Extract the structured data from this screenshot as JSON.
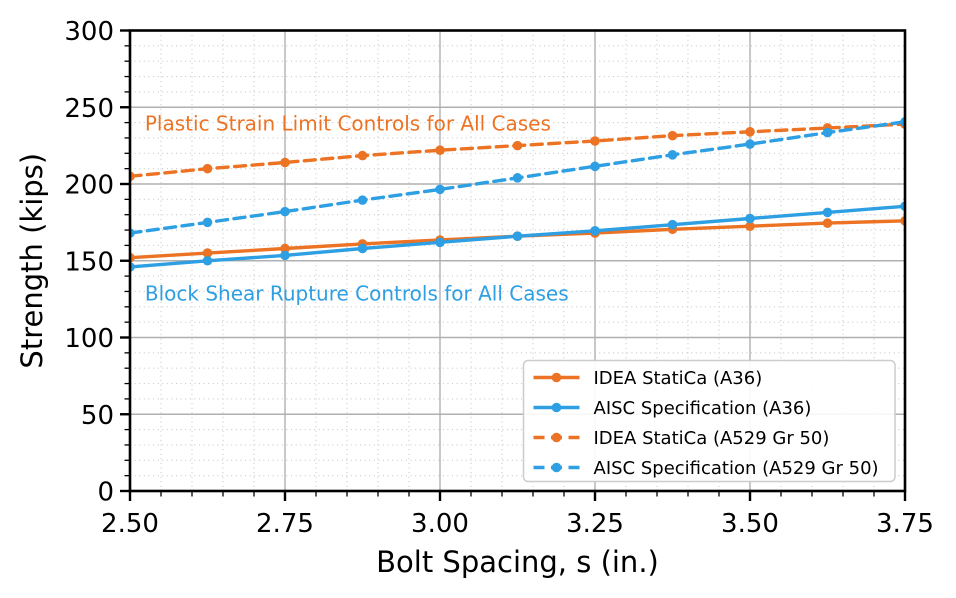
{
  "chart_data": {
    "type": "line",
    "title": "",
    "xlabel": "Bolt Spacing, s (in.)",
    "ylabel": "Strength (kips)",
    "xlim": [
      2.5,
      3.75
    ],
    "ylim": [
      0,
      300
    ],
    "x_major_ticks": [
      2.5,
      2.75,
      3.0,
      3.25,
      3.5,
      3.75
    ],
    "x_tick_labels": [
      "2.50",
      "2.75",
      "3.00",
      "3.25",
      "3.50",
      "3.75"
    ],
    "x_minor_step": 0.05,
    "y_major_ticks": [
      0,
      50,
      100,
      150,
      200,
      250,
      300
    ],
    "y_tick_labels": [
      "0",
      "50",
      "100",
      "150",
      "200",
      "250",
      "300"
    ],
    "y_minor_step": 10,
    "grid": {
      "major": "solid",
      "minor": "dotted"
    },
    "legend_position": "lower right",
    "x": [
      2.5,
      2.625,
      2.75,
      2.875,
      3.0,
      3.125,
      3.25,
      3.375,
      3.5,
      3.625,
      3.75
    ],
    "series": [
      {
        "name": "IDEA StatiCa (A36)",
        "color": "#ec7323",
        "style": "solid",
        "marker": "circle",
        "values": [
          152,
          155,
          158,
          161,
          163.5,
          166,
          168,
          170.5,
          172.5,
          174.5,
          176
        ]
      },
      {
        "name": "AISC Specification (A36)",
        "color": "#2d9fe2",
        "style": "solid",
        "marker": "circle",
        "values": [
          146,
          150,
          153.5,
          158,
          162,
          166,
          169.5,
          173.5,
          177.5,
          181.5,
          185.5
        ]
      },
      {
        "name": "IDEA StatiCa (A529 Gr 50)",
        "color": "#ec7323",
        "style": "dashed",
        "marker": "circle",
        "values": [
          205,
          210,
          214,
          218.5,
          222,
          225,
          228,
          231.5,
          234,
          236.5,
          239
        ]
      },
      {
        "name": "AISC Specification (A529 Gr 50)",
        "color": "#2d9fe2",
        "style": "dashed",
        "marker": "circle",
        "values": [
          168,
          175,
          182,
          189.5,
          196.5,
          204,
          211.5,
          219,
          226,
          233.5,
          240.5
        ]
      }
    ],
    "annotations": [
      {
        "text": "Plastic Strain Limit Controls for All Cases",
        "color": "#ec7323",
        "x": 2.524,
        "y": 235
      },
      {
        "text": "Block Shear Rupture Controls for All Cases",
        "color": "#2d9fe2",
        "x": 2.524,
        "y": 124
      }
    ],
    "colors": {
      "spine": "#000000",
      "grid_major": "#b0b0b0",
      "grid_minor": "#c8c8c8",
      "tick_text": "#000000",
      "legend_border": "#cccccc",
      "legend_bg": "rgba(255,255,255,0.9)"
    }
  }
}
